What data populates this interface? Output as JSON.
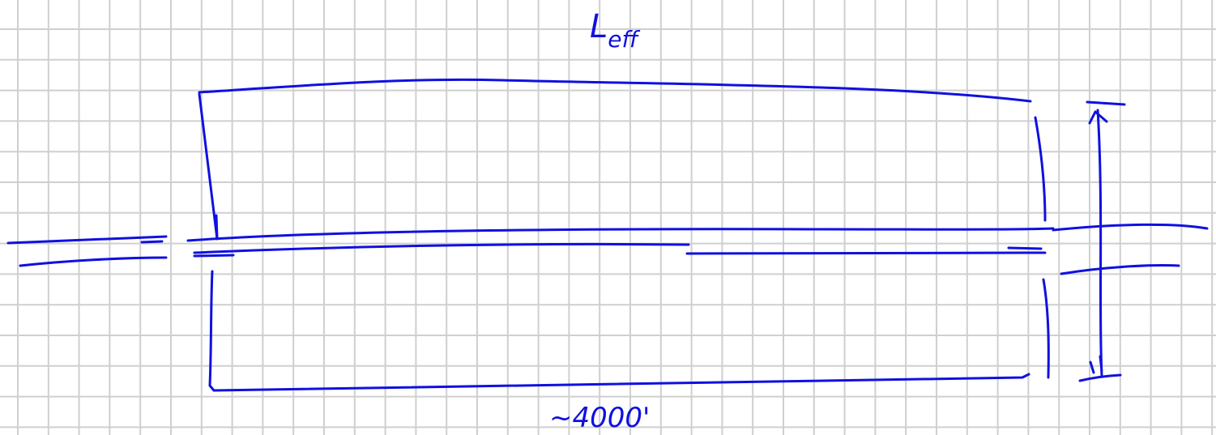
{
  "top_label": {
    "main": "L",
    "subscript": "eff"
  },
  "bottom_label": "~4000'"
}
